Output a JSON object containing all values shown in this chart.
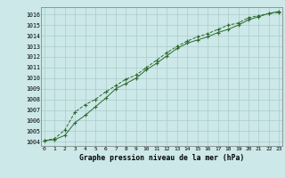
{
  "line1_x": [
    0,
    1,
    2,
    3,
    4,
    5,
    6,
    7,
    8,
    9,
    10,
    11,
    12,
    13,
    14,
    15,
    16,
    17,
    18,
    19,
    20,
    21,
    22,
    23
  ],
  "line1_y": [
    1004.1,
    1004.2,
    1004.6,
    1005.8,
    1006.5,
    1007.3,
    1008.1,
    1009.0,
    1009.5,
    1010.0,
    1010.8,
    1011.4,
    1012.1,
    1012.8,
    1013.3,
    1013.6,
    1013.9,
    1014.3,
    1014.6,
    1015.0,
    1015.5,
    1015.8,
    1016.1,
    1016.3
  ],
  "line2_x": [
    0,
    1,
    2,
    3,
    4,
    5,
    6,
    7,
    8,
    9,
    10,
    11,
    12,
    13,
    14,
    15,
    16,
    17,
    18,
    19,
    20,
    21,
    22,
    23
  ],
  "line2_y": [
    1004.1,
    1004.3,
    1005.1,
    1006.8,
    1007.5,
    1008.0,
    1008.7,
    1009.3,
    1009.9,
    1010.3,
    1011.0,
    1011.7,
    1012.4,
    1013.0,
    1013.5,
    1013.9,
    1014.2,
    1014.6,
    1015.0,
    1015.2,
    1015.7,
    1015.9,
    1016.1,
    1016.2
  ],
  "line_color": "#2d6a2d",
  "bg_color": "#cce8e8",
  "grid_color": "#aacccc",
  "ylabel_values": [
    1004,
    1005,
    1006,
    1007,
    1008,
    1009,
    1010,
    1011,
    1012,
    1013,
    1014,
    1015,
    1016
  ],
  "xlabel_values": [
    0,
    1,
    2,
    3,
    4,
    5,
    6,
    7,
    8,
    9,
    10,
    11,
    12,
    13,
    14,
    15,
    16,
    17,
    18,
    19,
    20,
    21,
    22,
    23
  ],
  "xlabel": "Graphe pression niveau de la mer (hPa)",
  "ylim": [
    1003.6,
    1016.7
  ],
  "xlim": [
    -0.3,
    23.3
  ]
}
